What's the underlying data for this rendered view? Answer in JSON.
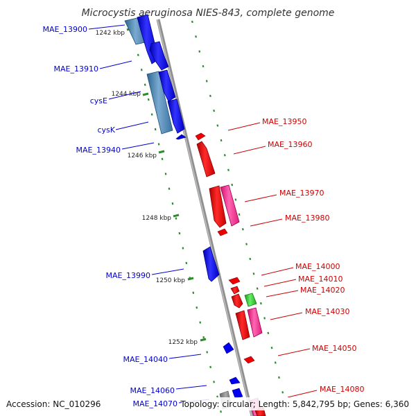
{
  "title": "Microcystis aeruginosa NIES-843, complete genome",
  "accession": "Accession: NC_010296",
  "topology": "Topology: circular; Length: 5,842,795 bp; Genes: 6,360",
  "colors": {
    "forward": "#0000ee",
    "reverse": "#ee0000",
    "forward_label": "#0000cc",
    "reverse_label": "#cc0000",
    "rna_forward": "#4a86b8",
    "rna_reverse": "#ff3399",
    "other": "#33cc33",
    "backbone": "#888888",
    "tick": "#2e8b2e"
  },
  "scale_labels": [
    "1242 kbp",
    "1244 kbp",
    "1246 kbp",
    "1248 kbp",
    "1250 kbp",
    "1252 kbp"
  ],
  "genes_left": [
    {
      "label": "MAE_13900"
    },
    {
      "label": "MAE_13910"
    },
    {
      "label": "cysE"
    },
    {
      "label": "cysK"
    },
    {
      "label": "MAE_13940"
    },
    {
      "label": "MAE_13990"
    },
    {
      "label": "MAE_14040"
    },
    {
      "label": "MAE_14060"
    },
    {
      "label": "MAE_14070"
    }
  ],
  "genes_right": [
    {
      "label": "MAE_13950"
    },
    {
      "label": "MAE_13960"
    },
    {
      "label": "MAE_13970"
    },
    {
      "label": "MAE_13980"
    },
    {
      "label": "MAE_14000"
    },
    {
      "label": "MAE_14010"
    },
    {
      "label": "MAE_14020"
    },
    {
      "label": "MAE_14030"
    },
    {
      "label": "MAE_14050"
    },
    {
      "label": "MAE_14080"
    }
  ]
}
